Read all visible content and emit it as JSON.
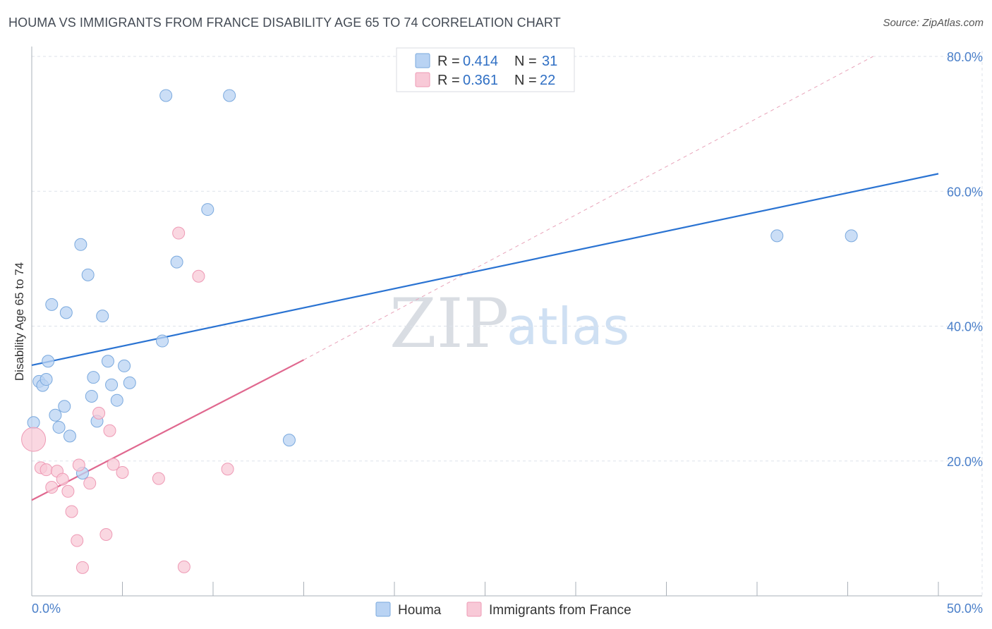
{
  "title": "HOUMA VS IMMIGRANTS FROM FRANCE DISABILITY AGE 65 TO 74 CORRELATION CHART",
  "source": "Source: ZipAtlas.com",
  "watermark": {
    "zip": "ZIP",
    "atlas": "atlas"
  },
  "colors": {
    "houma_fill": "#b9d3f3",
    "houma_stroke": "#7aa9de",
    "houma_line": "#2a73d2",
    "france_fill": "#f8c9d7",
    "france_stroke": "#ee9ab5",
    "france_line": "#e0688f",
    "grid": "#dde2ea",
    "tick_text": "#4a7fc9"
  },
  "legend": {
    "houma": {
      "r_label": "R = ",
      "r_value": "0.414",
      "n_label": "N = ",
      "n_value": "31"
    },
    "france": {
      "r_label": "R = ",
      "r_value": "0.361",
      "n_label": "N = ",
      "n_value": "22"
    }
  },
  "chart_data": {
    "type": "scatter",
    "title": "HOUMA VS IMMIGRANTS FROM FRANCE DISABILITY AGE 65 TO 74 CORRELATION CHART",
    "xlabel": "",
    "ylabel": "Disability Age 65 to 74",
    "xlim": [
      0,
      50
    ],
    "ylim": [
      0,
      80
    ],
    "x_tick_labels": [
      "0.0%",
      "50.0%"
    ],
    "y_ticks": [
      20,
      40,
      60,
      80
    ],
    "y_tick_labels": [
      "20.0%",
      "40.0%",
      "60.0%",
      "80.0%"
    ],
    "legend_position": "top-center",
    "series": [
      {
        "name": "Houma",
        "points": [
          [
            0.1,
            25.7
          ],
          [
            0.4,
            31.8
          ],
          [
            0.6,
            31.2
          ],
          [
            0.8,
            32.1
          ],
          [
            0.9,
            34.8
          ],
          [
            1.1,
            43.2
          ],
          [
            1.3,
            26.8
          ],
          [
            1.5,
            25.0
          ],
          [
            1.8,
            28.1
          ],
          [
            1.9,
            42.0
          ],
          [
            2.1,
            23.7
          ],
          [
            2.7,
            52.1
          ],
          [
            2.8,
            18.2
          ],
          [
            3.1,
            47.6
          ],
          [
            3.3,
            29.6
          ],
          [
            3.4,
            32.4
          ],
          [
            3.6,
            25.9
          ],
          [
            3.9,
            41.5
          ],
          [
            4.2,
            34.8
          ],
          [
            4.4,
            31.3
          ],
          [
            4.7,
            29.0
          ],
          [
            5.1,
            34.1
          ],
          [
            5.4,
            31.6
          ],
          [
            7.2,
            37.8
          ],
          [
            7.4,
            74.2
          ],
          [
            8.0,
            49.5
          ],
          [
            9.7,
            57.3
          ],
          [
            10.9,
            74.2
          ],
          [
            14.2,
            23.1
          ],
          [
            41.1,
            53.4
          ],
          [
            45.2,
            53.4
          ]
        ],
        "trend": {
          "x1": 0,
          "y1": 34.2,
          "x2": 50,
          "y2": 62.6
        }
      },
      {
        "name": "Immigrants from France",
        "points": [
          [
            0.1,
            23.2
          ],
          [
            0.5,
            19.0
          ],
          [
            0.8,
            18.7
          ],
          [
            1.1,
            16.1
          ],
          [
            1.4,
            18.5
          ],
          [
            1.7,
            17.3
          ],
          [
            2.0,
            15.5
          ],
          [
            2.2,
            12.5
          ],
          [
            2.5,
            8.2
          ],
          [
            2.6,
            19.4
          ],
          [
            2.8,
            4.2
          ],
          [
            3.2,
            16.7
          ],
          [
            3.7,
            27.1
          ],
          [
            4.1,
            9.1
          ],
          [
            4.3,
            24.5
          ],
          [
            4.5,
            19.5
          ],
          [
            5.0,
            18.3
          ],
          [
            7.0,
            17.4
          ],
          [
            8.1,
            53.8
          ],
          [
            8.4,
            4.3
          ],
          [
            9.2,
            47.4
          ],
          [
            10.8,
            18.8
          ]
        ],
        "trend": {
          "x1": 0,
          "y1": 14.2,
          "x2": 15,
          "y2": 35.0
        },
        "trend_extended": {
          "x1": 15,
          "y1": 35.0,
          "x2": 46.4,
          "y2": 80.0
        }
      }
    ]
  },
  "bottom_legend": [
    {
      "label": "Houma"
    },
    {
      "label": "Immigrants from France"
    }
  ]
}
